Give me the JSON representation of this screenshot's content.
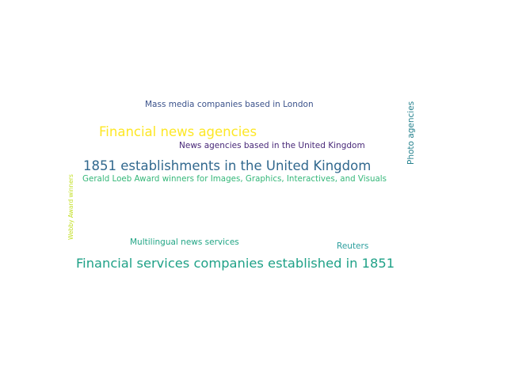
{
  "words": [
    {
      "text": "Mass media companies based in London",
      "color": "#3b528b"
    },
    {
      "text": "Financial news agencies",
      "color": "#fde725"
    },
    {
      "text": "News agencies based in the United Kingdom",
      "color": "#482878"
    },
    {
      "text": "1851 establishments in the United Kingdom",
      "color": "#31688e"
    },
    {
      "text": "Gerald Loeb Award winners for Images, Graphics, Interactives, and Visuals",
      "color": "#35b779"
    },
    {
      "text": "Multilingual news services",
      "color": "#21a585"
    },
    {
      "text": "Reuters",
      "color": "#2c9f9e"
    },
    {
      "text": "Financial services companies established in 1851",
      "color": "#1fa187"
    },
    {
      "text": "Photo agencies",
      "color": "#26828e"
    },
    {
      "text": "Webby Award winners",
      "color": "#c2df23"
    }
  ]
}
